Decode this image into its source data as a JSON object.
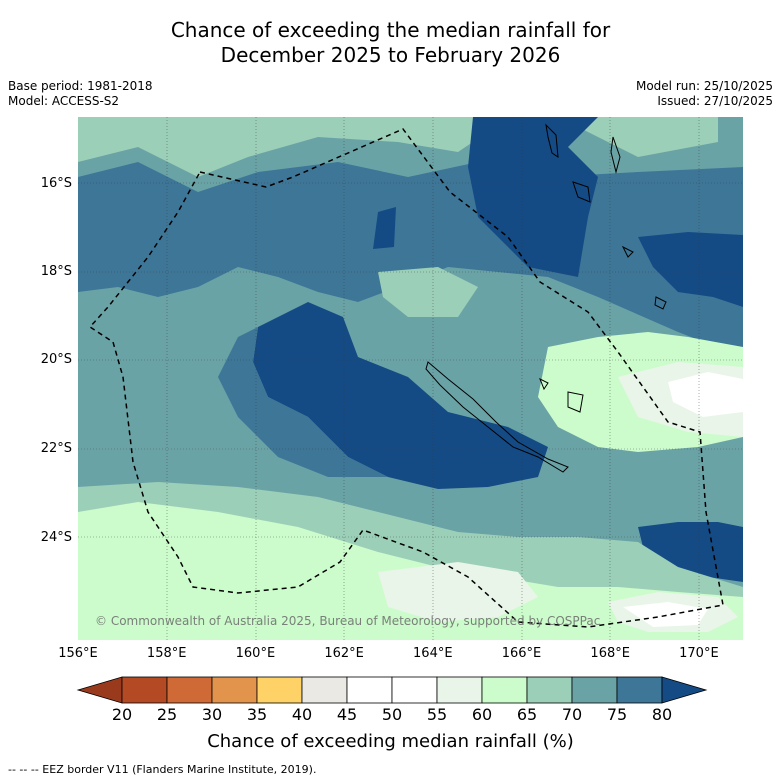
{
  "title": {
    "line1": "Chance of exceeding the median rainfall for",
    "line2": "December 2025 to February 2026"
  },
  "meta": {
    "base_period": "Base period: 1981-2018",
    "model": "Model: ACCESS-S2",
    "model_run": "Model run: 25/10/2025",
    "issued": "Issued: 27/10/2025"
  },
  "map": {
    "lat_labels": [
      "16°S",
      "18°S",
      "20°S",
      "22°S",
      "24°S"
    ],
    "lon_labels": [
      "156°E",
      "158°E",
      "160°E",
      "162°E",
      "164°E",
      "166°E",
      "168°E",
      "170°E"
    ],
    "copyright": "© Commonwealth of Australia 2025, Bureau of Meteorology, supported by COSPPac"
  },
  "colorbar": {
    "ticks": [
      "20",
      "25",
      "30",
      "35",
      "40",
      "45",
      "50",
      "55",
      "60",
      "65",
      "70",
      "75",
      "80"
    ],
    "colors": [
      "#b34a23",
      "#cf6a36",
      "#e2944c",
      "#fed267",
      "#eae9e4",
      "#ffffff",
      "#ffffff",
      "#e8f5e8",
      "#ccfccb",
      "#9ccfb8",
      "#6aa3a6",
      "#3e7698",
      "#144b85"
    ],
    "title": "Chance of exceeding median rainfall (%)"
  },
  "legend": {
    "eez": "-- -- -- EEZ border V11 (Flanders Marine Institute, 2019)."
  }
}
